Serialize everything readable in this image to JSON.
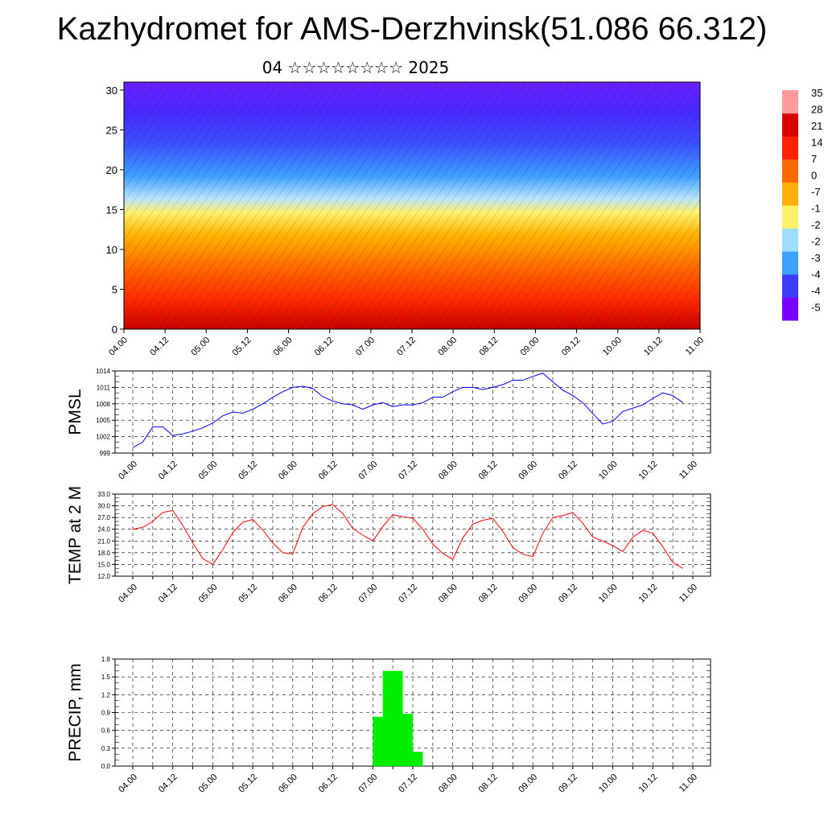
{
  "title": "Kazhydromet for AMS-Derzhvinsk(51.086 66.312)",
  "subtitle": "04 ☆☆☆☆☆☆☆☆ 2025",
  "chart_data": [
    {
      "type": "heatmap",
      "name": "cross-section",
      "x_ticks": [
        "04.00",
        "04.12",
        "05.00",
        "05.12",
        "06.00",
        "06.12",
        "07.00",
        "07.12",
        "08.00",
        "08.12",
        "09.00",
        "09.12",
        "10.00",
        "10.12",
        "11.00"
      ],
      "y_ticks": [
        "0",
        "5",
        "10",
        "15",
        "20",
        "25",
        "30"
      ],
      "ylim": [
        0,
        31
      ],
      "colorbar_labels": [
        "35",
        "28",
        "21",
        "14",
        "7",
        "0",
        "-7",
        "-1",
        "-2",
        "-2",
        "-3",
        "-4",
        "-4",
        "-5"
      ],
      "colors": [
        "#7a00ff",
        "#3c3cff",
        "#3ca0ff",
        "#9fdcff",
        "#fff06a",
        "#ffb000",
        "#ff6a00",
        "#ff2200",
        "#d80000",
        "#ff9a9a"
      ]
    },
    {
      "type": "line",
      "name": "PMSL",
      "ylabel": "PMSL",
      "y_ticks": [
        "999",
        "1002",
        "1005",
        "1008",
        "1011",
        "1014"
      ],
      "ylim": [
        999,
        1014
      ],
      "x_ticks": [
        "04.00",
        "04.12",
        "05.00",
        "05.12",
        "06.00",
        "06.12",
        "07.00",
        "07.12",
        "08.00",
        "08.12",
        "09.00",
        "09.12",
        "10.00",
        "10.12",
        "11.00"
      ],
      "series": [
        {
          "color": "#0000ff",
          "x": [
            -0.5,
            0,
            0.5,
            1,
            1.5,
            2,
            2.5,
            3,
            3.5,
            4,
            4.5,
            5,
            5.5,
            6,
            6.5,
            7,
            7.5,
            8,
            8.5,
            9,
            9.5,
            10,
            10.5,
            11,
            11.5,
            12,
            12.5,
            13,
            13.5,
            14,
            14.5,
            15,
            15.5,
            16,
            16.5,
            17,
            17.5,
            18,
            18.5,
            19,
            19.5,
            20,
            20.5,
            21,
            21.5,
            22,
            22.5,
            23,
            23.5,
            24,
            24.5,
            25,
            25.5,
            26,
            26.5,
            27
          ],
          "values": [
            1000.0,
            1001.0,
            1003.8,
            1003.8,
            1002.2,
            1002.5,
            1003.0,
            1003.6,
            1004.5,
            1005.8,
            1006.5,
            1006.3,
            1007.0,
            1008.0,
            1009.2,
            1010.2,
            1011.0,
            1011.2,
            1010.8,
            1009.3,
            1008.5,
            1008.0,
            1007.8,
            1007.0,
            1007.8,
            1008.2,
            1007.5,
            1007.8,
            1007.8,
            1008.2,
            1009.2,
            1009.2,
            1010.2,
            1011.0,
            1011.0,
            1010.6,
            1011.0,
            1011.5,
            1012.3,
            1012.3,
            1013.0,
            1013.6,
            1012.0,
            1010.5,
            1009.5,
            1008.2,
            1006.2,
            1004.3,
            1004.8,
            1006.6,
            1007.2,
            1007.8,
            1009.0,
            1010.0,
            1009.5,
            1008.2
          ]
        }
      ]
    },
    {
      "type": "line",
      "name": "TEMP at 2 M",
      "ylabel": "TEMP at 2 M",
      "y_ticks": [
        "12.0",
        "15.0",
        "18.0",
        "21.0",
        "24.0",
        "27.0",
        "30.0",
        "33.0"
      ],
      "ylim": [
        12,
        33
      ],
      "x_ticks": [
        "04.00",
        "04.12",
        "05.00",
        "05.12",
        "06.00",
        "06.12",
        "07.00",
        "07.12",
        "08.00",
        "08.12",
        "09.00",
        "09.12",
        "10.00",
        "10.12",
        "11.00"
      ],
      "series": [
        {
          "color": "#ff0000",
          "x": [
            -0.5,
            0,
            0.5,
            1,
            1.5,
            2,
            2.5,
            3,
            3.5,
            4,
            4.5,
            5,
            5.5,
            6,
            6.5,
            7,
            7.5,
            8,
            8.5,
            9,
            9.5,
            10,
            10.5,
            11,
            11.5,
            12,
            12.5,
            13,
            13.5,
            14,
            14.5,
            15,
            15.5,
            16,
            16.5,
            17,
            17.5,
            18,
            18.5,
            19,
            19.5,
            20,
            20.5,
            21,
            21.5,
            22,
            22.5,
            23,
            23.5,
            24,
            24.5,
            25,
            25.5,
            26,
            26.5,
            27
          ],
          "values": [
            24.0,
            24.5,
            26.0,
            28.3,
            28.8,
            25.0,
            20.5,
            16.5,
            15.0,
            18.8,
            23.2,
            25.8,
            26.5,
            23.8,
            20.5,
            18.0,
            17.7,
            24.5,
            28.0,
            29.8,
            30.3,
            28.0,
            24.2,
            22.5,
            21.0,
            24.7,
            27.7,
            27.2,
            26.8,
            24.0,
            20.2,
            17.8,
            16.3,
            21.8,
            25.3,
            26.3,
            26.8,
            23.5,
            19.3,
            17.6,
            17.0,
            23.0,
            27.0,
            27.5,
            28.3,
            25.5,
            22.0,
            21.0,
            19.8,
            18.3,
            22.0,
            23.7,
            23.0,
            19.5,
            15.5,
            14.0
          ]
        }
      ]
    },
    {
      "type": "bar",
      "name": "PRECIP, mm",
      "ylabel": "PRECIP, mm",
      "y_ticks": [
        "0.0",
        "0.3",
        "0.6",
        "0.9",
        "1.2",
        "1.5",
        "1.8"
      ],
      "ylim": [
        0,
        1.8
      ],
      "x_ticks": [
        "04.00",
        "04.12",
        "05.00",
        "05.12",
        "06.00",
        "06.12",
        "07.00",
        "07.12",
        "08.00",
        "08.12",
        "09.00",
        "09.12",
        "10.00",
        "10.12",
        "11.00"
      ],
      "bars": [
        {
          "x": 12.5,
          "value": 0.83
        },
        {
          "x": 13.0,
          "value": 1.6
        },
        {
          "x": 13.5,
          "value": 0.88
        },
        {
          "x": 14.0,
          "value": 0.24
        }
      ],
      "bar_color": "#00ee00"
    }
  ]
}
